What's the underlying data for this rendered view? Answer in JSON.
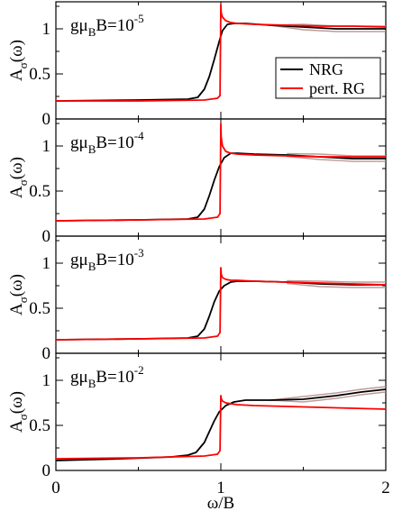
{
  "colors": {
    "nrg": "#000000",
    "pert_rg": "#ff0000",
    "nrg_shadow": "#b08080"
  },
  "chart_data": {
    "type": "line",
    "xlabel": "ω/B",
    "ylabel_main": "A",
    "ylabel_sub": "σ",
    "ylabel_arg": "(ω)",
    "xlim": [
      0,
      2
    ],
    "ylim": [
      0,
      1.3
    ],
    "x_ticks": [
      "0",
      "1",
      "2"
    ],
    "y_ticks": [
      "0",
      "0.5",
      "1"
    ],
    "legend": {
      "placement": "top-right of first panel",
      "entries": [
        "NRG",
        "pert. RG"
      ]
    },
    "panels": [
      {
        "label_base": "gμ",
        "label_sub": "B",
        "label_after": "B=10",
        "label_exp": "-5",
        "series": [
          {
            "name": "NRG",
            "x": [
              0,
              0.5,
              0.8,
              0.86,
              0.9,
              0.93,
              0.96,
              0.99,
              1.01,
              1.04,
              1.08,
              1.15,
              1.3,
              1.5,
              1.7,
              1.85,
              2.0
            ],
            "y": [
              0.2,
              0.21,
              0.22,
              0.24,
              0.33,
              0.47,
              0.66,
              0.86,
              0.98,
              1.05,
              1.06,
              1.06,
              1.04,
              1.02,
              1.0,
              1.0,
              1.0
            ]
          },
          {
            "name": "pert. RG",
            "x": [
              0,
              0.5,
              0.9,
              0.98,
              0.995,
              1.0,
              1.002,
              1.01,
              1.03,
              1.06,
              1.1,
              1.2,
              1.4,
              1.6,
              1.8,
              2.0
            ],
            "y": [
              0.2,
              0.2,
              0.21,
              0.23,
              0.26,
              1.27,
              1.18,
              1.13,
              1.09,
              1.07,
              1.06,
              1.05,
              1.04,
              1.03,
              1.03,
              1.02
            ]
          }
        ]
      },
      {
        "label_base": "gμ",
        "label_sub": "B",
        "label_after": "B=10",
        "label_exp": "-4",
        "series": [
          {
            "name": "NRG",
            "x": [
              0,
              0.5,
              0.8,
              0.86,
              0.9,
              0.93,
              0.96,
              0.99,
              1.02,
              1.06,
              1.1,
              1.2,
              1.4,
              1.6,
              1.8,
              2.0
            ],
            "y": [
              0.17,
              0.18,
              0.19,
              0.21,
              0.3,
              0.45,
              0.62,
              0.77,
              0.87,
              0.92,
              0.92,
              0.91,
              0.9,
              0.88,
              0.86,
              0.86
            ]
          },
          {
            "name": "pert. RG",
            "x": [
              0,
              0.5,
              0.9,
              0.98,
              0.995,
              1.0,
              1.002,
              1.01,
              1.03,
              1.06,
              1.1,
              1.2,
              1.4,
              1.6,
              1.8,
              2.0
            ],
            "y": [
              0.17,
              0.18,
              0.19,
              0.21,
              0.25,
              1.25,
              1.1,
              1.0,
              0.94,
              0.92,
              0.91,
              0.9,
              0.89,
              0.88,
              0.88,
              0.88
            ]
          }
        ]
      },
      {
        "label_base": "gμ",
        "label_sub": "B",
        "label_after": "B=10",
        "label_exp": "-3",
        "series": [
          {
            "name": "NRG",
            "x": [
              0,
              0.5,
              0.8,
              0.86,
              0.9,
              0.93,
              0.96,
              0.99,
              1.02,
              1.06,
              1.1,
              1.2,
              1.4,
              1.6,
              1.8,
              2.0
            ],
            "y": [
              0.15,
              0.16,
              0.17,
              0.19,
              0.27,
              0.41,
              0.57,
              0.69,
              0.75,
              0.79,
              0.8,
              0.8,
              0.79,
              0.77,
              0.76,
              0.76
            ]
          },
          {
            "name": "pert. RG",
            "x": [
              0,
              0.5,
              0.9,
              0.98,
              0.995,
              1.0,
              1.002,
              1.01,
              1.03,
              1.06,
              1.1,
              1.2,
              1.4,
              1.6,
              1.8,
              2.0
            ],
            "y": [
              0.15,
              0.16,
              0.17,
              0.19,
              0.23,
              0.95,
              0.88,
              0.84,
              0.82,
              0.81,
              0.81,
              0.8,
              0.79,
              0.78,
              0.77,
              0.76
            ]
          }
        ]
      },
      {
        "label_base": "gμ",
        "label_sub": "B",
        "label_after": "B=10",
        "label_exp": "-2",
        "series": [
          {
            "name": "NRG",
            "x": [
              0,
              0.4,
              0.7,
              0.8,
              0.85,
              0.9,
              0.93,
              0.96,
              0.99,
              1.03,
              1.08,
              1.15,
              1.3,
              1.5,
              1.7,
              1.85,
              2.0
            ],
            "y": [
              0.11,
              0.13,
              0.15,
              0.17,
              0.2,
              0.31,
              0.43,
              0.55,
              0.65,
              0.72,
              0.76,
              0.78,
              0.78,
              0.79,
              0.83,
              0.87,
              0.9
            ]
          },
          {
            "name": "pert. RG",
            "x": [
              0,
              0.5,
              0.9,
              0.98,
              0.995,
              1.0,
              1.002,
              1.01,
              1.03,
              1.06,
              1.1,
              1.2,
              1.4,
              1.6,
              1.8,
              2.0
            ],
            "y": [
              0.13,
              0.14,
              0.16,
              0.18,
              0.22,
              0.83,
              0.8,
              0.77,
              0.75,
              0.74,
              0.73,
              0.72,
              0.71,
              0.7,
              0.69,
              0.68
            ]
          }
        ]
      }
    ]
  }
}
